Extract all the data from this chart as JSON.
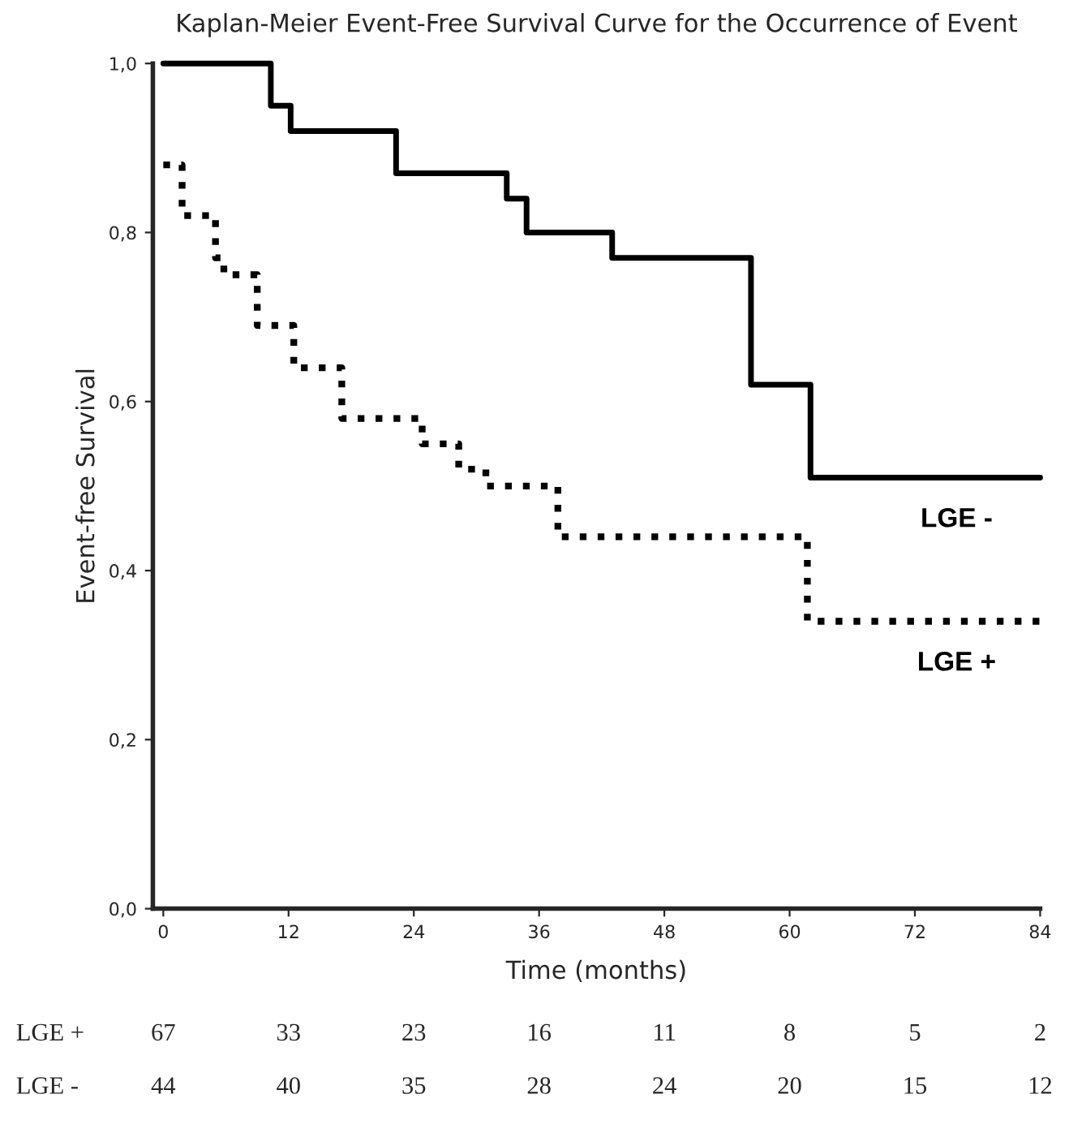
{
  "chart_data": {
    "type": "step",
    "title": "Kaplan-Meier Event-Free Survival Curve for the Occurrence of Event",
    "xlabel": "Time (months)",
    "ylabel": "Event-free Survival",
    "series": [
      {
        "name": "LGE -",
        "color": "#000000",
        "line_style": "solid",
        "x": [
          0,
          10.3,
          12.2,
          22.3,
          32.9,
          34.8,
          43.0,
          56.3,
          62.0,
          84
        ],
        "values": [
          1.0,
          0.95,
          0.92,
          0.87,
          0.84,
          0.8,
          0.77,
          0.62,
          0.51,
          0.51
        ]
      },
      {
        "name": "LGE +",
        "color": "#000000",
        "line_style": "dotted",
        "x": [
          0,
          1.8,
          5.0,
          5.8,
          9.0,
          12.5,
          17.1,
          24.8,
          28.3,
          30.9,
          37.8,
          61.7,
          84
        ],
        "values": [
          0.88,
          0.82,
          0.77,
          0.75,
          0.69,
          0.64,
          0.58,
          0.55,
          0.52,
          0.5,
          0.44,
          0.34,
          0.34
        ]
      }
    ],
    "xlim": [
      -1,
      84
    ],
    "xticks": [
      0,
      12,
      24,
      36,
      48,
      60,
      72,
      84
    ],
    "ylim": [
      0,
      1.0
    ],
    "yticks": [
      {
        "value": 0,
        "label": "0,0"
      },
      {
        "value": 0.2,
        "label": "0,2"
      },
      {
        "value": 0.4,
        "label": "0,4"
      },
      {
        "value": 0.6,
        "label": "0,6"
      },
      {
        "value": 0.8,
        "label": "0,8"
      },
      {
        "value": 1.0,
        "label": "1,0"
      }
    ],
    "grid": false,
    "legend": false,
    "annotations": [
      "LGE +",
      "67",
      "33",
      "23",
      "16",
      "11",
      "8",
      "5",
      "2",
      "LGE -",
      "44",
      "40",
      "35",
      "28",
      "24",
      "20",
      "15",
      "12"
    ]
  }
}
